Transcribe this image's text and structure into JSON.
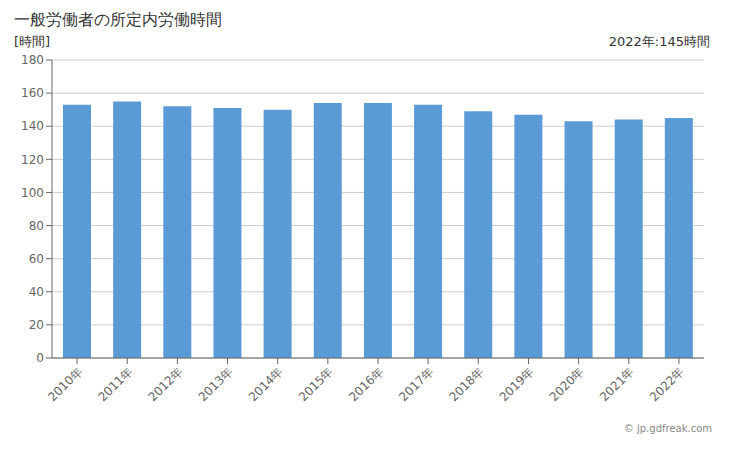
{
  "chart_data": {
    "type": "bar",
    "title": "一般労働者の所定内労働時間",
    "ylabel": "[時間]",
    "annotations": [
      "2022年:145時間",
      "© jp.gdfreak.com"
    ],
    "categories": [
      "2010年",
      "2011年",
      "2012年",
      "2013年",
      "2014年",
      "2015年",
      "2016年",
      "2017年",
      "2018年",
      "2019年",
      "2020年",
      "2021年",
      "2022年"
    ],
    "values": [
      153,
      155,
      152,
      151,
      150,
      154,
      154,
      153,
      149,
      147,
      143,
      144,
      145
    ],
    "color": "#5B9BD5",
    "ylim": [
      0,
      180
    ],
    "yticks": [
      0,
      20,
      40,
      60,
      80,
      100,
      120,
      140,
      160,
      180
    ],
    "grid": true
  }
}
